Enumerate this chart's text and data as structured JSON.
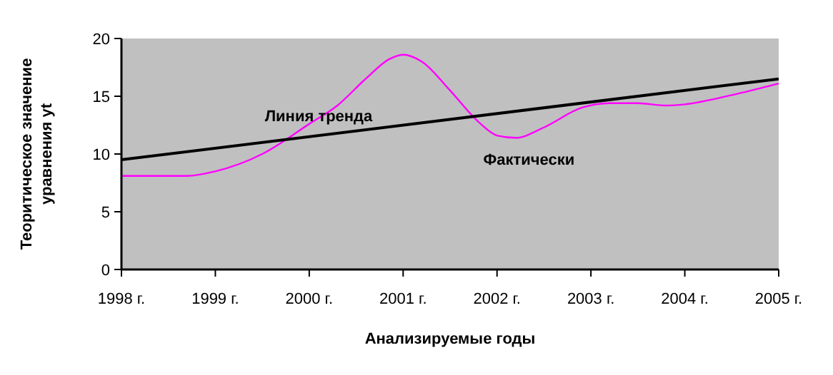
{
  "chart_data": {
    "type": "line",
    "xlabel": "Анализируемые годы",
    "ylabel": "Теоритическое значение уравнения yt",
    "xlim": [
      1998,
      2005
    ],
    "xticks": [
      {
        "value": 1998,
        "label": "1998 г."
      },
      {
        "value": 1999,
        "label": "1999 г."
      },
      {
        "value": 2000,
        "label": "2000 г."
      },
      {
        "value": 2001,
        "label": "2001 г."
      },
      {
        "value": 2002,
        "label": "2002 г."
      },
      {
        "value": 2003,
        "label": "2003 г."
      },
      {
        "value": 2004,
        "label": "2004 г."
      },
      {
        "value": 2005,
        "label": "2005 г."
      }
    ],
    "ylim": [
      0,
      20
    ],
    "yticks": [
      0,
      5,
      10,
      15,
      20
    ],
    "grid": false,
    "marker": "none",
    "series": [
      {
        "name": "Фактически",
        "color": "#ff00ff",
        "x": [
          1998,
          1998.7,
          1999,
          1999.5,
          2000,
          2000.3,
          2000.6,
          2000.85,
          2001,
          2001.2,
          2001.5,
          2001.8,
          2002,
          2002.2,
          2002.5,
          2002.9,
          2003.2,
          2003.5,
          2003.8,
          2004,
          2004.5,
          2005
        ],
        "values": [
          8.1,
          8.1,
          8.5,
          10,
          12.6,
          14.2,
          16.5,
          18.2,
          18.6,
          18,
          15.5,
          12.8,
          11.6,
          11.4,
          12.3,
          14,
          14.4,
          14.4,
          14.2,
          14.3,
          15.1,
          16.1
        ]
      },
      {
        "name": "Линия тренда",
        "color": "#000000",
        "x": [
          1998,
          2005
        ],
        "values": [
          9.5,
          16.5
        ]
      }
    ]
  }
}
